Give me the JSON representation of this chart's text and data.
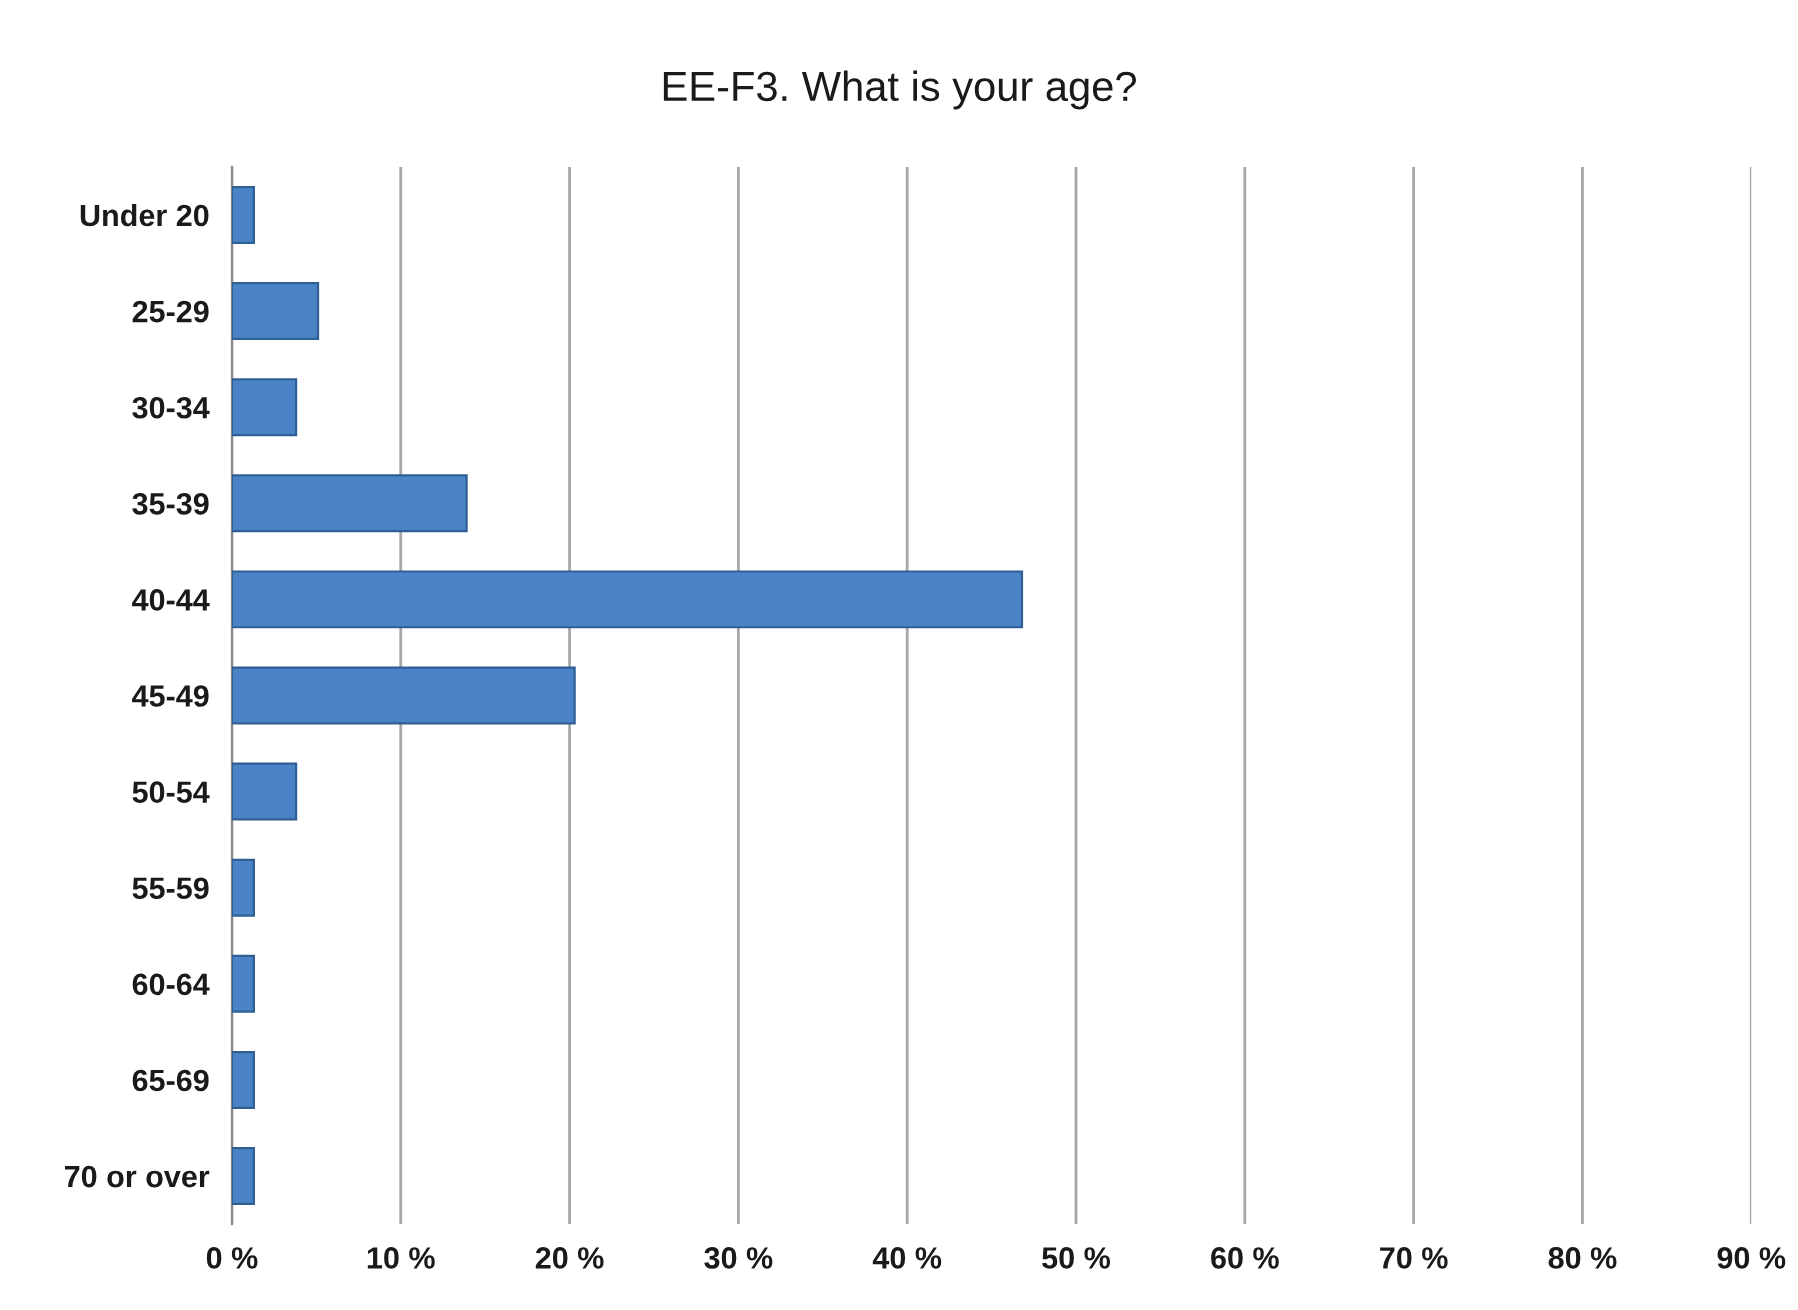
{
  "chart_data": {
    "type": "bar",
    "orientation": "horizontal",
    "title": "EE-F3. What is your age?",
    "categories": [
      "Under 20",
      "25-29",
      "30-34",
      "35-39",
      "40-44",
      "45-49",
      "50-54",
      "55-59",
      "60-64",
      "65-69",
      "70 or over"
    ],
    "values": [
      1.3,
      5.1,
      3.8,
      13.9,
      46.8,
      20.3,
      3.8,
      1.3,
      1.3,
      1.3,
      1.3
    ],
    "color": "#4a84c6",
    "xlim": [
      0,
      90
    ],
    "xticks": [
      {
        "value": 0,
        "label": "0 %"
      },
      {
        "value": 10,
        "label": "10 %"
      },
      {
        "value": 20,
        "label": "20 %"
      },
      {
        "value": 30,
        "label": "30 %"
      },
      {
        "value": 40,
        "label": "40 %"
      },
      {
        "value": 50,
        "label": "50 %"
      },
      {
        "value": 60,
        "label": "60 %"
      },
      {
        "value": 70,
        "label": "70 %"
      },
      {
        "value": 80,
        "label": "80 %"
      },
      {
        "value": 90,
        "label": "90 %"
      }
    ],
    "grid": "x"
  }
}
